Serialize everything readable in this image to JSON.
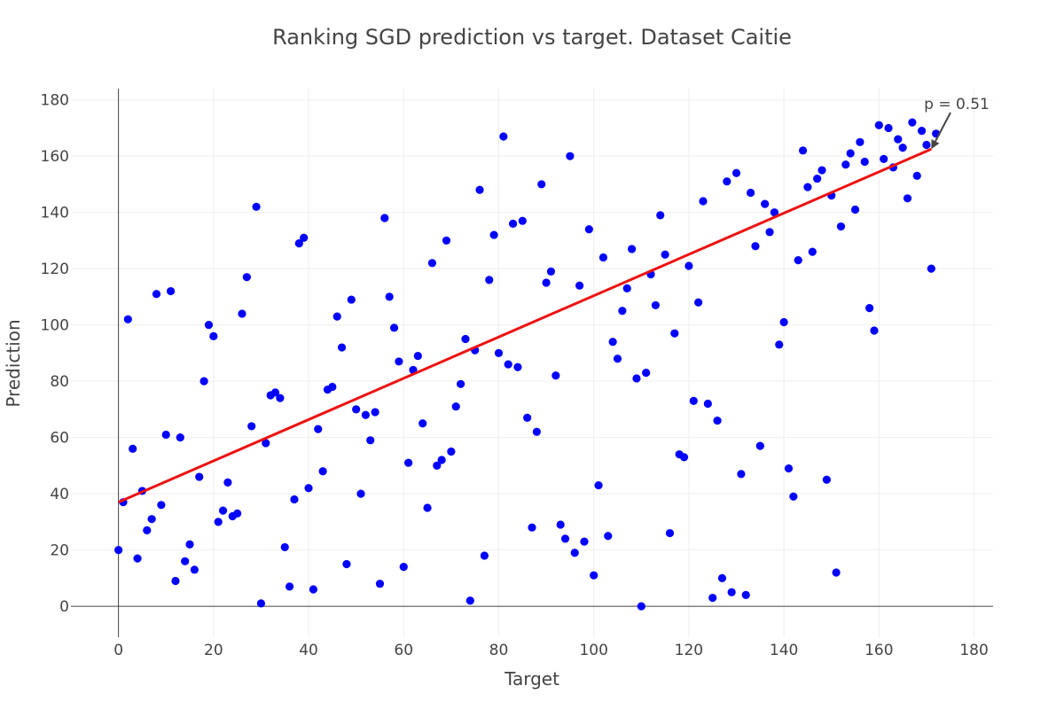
{
  "chart_data": {
    "type": "scatter",
    "title": "Ranking SGD prediction vs target. Dataset Caitie",
    "xlabel": "Target",
    "ylabel": "Prediction",
    "xlim": [
      -10,
      184
    ],
    "ylim": [
      -11,
      184
    ],
    "xticks": [
      0,
      20,
      40,
      60,
      80,
      100,
      120,
      140,
      160,
      180
    ],
    "yticks": [
      0,
      20,
      40,
      60,
      80,
      100,
      120,
      140,
      160,
      180
    ],
    "grid": true,
    "point_color": "#0000ff",
    "line_color": "#ee1111",
    "series": [
      {
        "type": "scatter",
        "x": [
          0,
          1,
          2,
          3,
          4,
          5,
          6,
          7,
          8,
          9,
          10,
          11,
          12,
          13,
          14,
          15,
          16,
          17,
          18,
          19,
          20,
          21,
          22,
          23,
          24,
          25,
          26,
          27,
          28,
          29,
          30,
          31,
          32,
          33,
          34,
          35,
          36,
          37,
          38,
          39,
          40,
          41,
          42,
          43,
          44,
          45,
          46,
          47,
          48,
          49,
          50,
          51,
          52,
          53,
          54,
          55,
          56,
          57,
          58,
          59,
          60,
          61,
          62,
          63,
          64,
          65,
          66,
          67,
          68,
          69,
          70,
          71,
          72,
          73,
          74,
          75,
          76,
          77,
          78,
          79,
          80,
          81,
          82,
          83,
          84,
          85,
          86,
          87,
          88,
          89,
          90,
          91,
          92,
          93,
          94,
          95,
          96,
          97,
          98,
          99,
          100,
          101,
          102,
          103,
          104,
          105,
          106,
          107,
          108,
          109,
          110,
          111,
          112,
          113,
          114,
          115,
          116,
          117,
          118,
          119,
          120,
          121,
          122,
          123,
          124,
          125,
          126,
          127,
          128,
          129,
          130,
          131,
          132,
          133,
          134,
          135,
          136,
          137,
          138,
          139,
          140,
          141,
          142,
          143,
          144,
          145,
          146,
          147,
          148,
          149,
          150,
          151,
          152,
          153,
          154,
          155,
          156,
          157,
          158,
          159,
          160,
          161,
          162,
          163,
          164,
          165,
          166,
          167,
          168,
          169,
          170,
          171,
          172
        ],
        "y": [
          20,
          37,
          102,
          56,
          17,
          41,
          27,
          31,
          111,
          36,
          61,
          112,
          9,
          60,
          16,
          22,
          13,
          46,
          80,
          100,
          96,
          30,
          34,
          44,
          32,
          33,
          104,
          117,
          64,
          142,
          1,
          58,
          75,
          76,
          74,
          21,
          7,
          38,
          129,
          131,
          42,
          6,
          63,
          48,
          77,
          78,
          103,
          92,
          15,
          109,
          70,
          40,
          68,
          59,
          69,
          8,
          138,
          110,
          99,
          87,
          14,
          51,
          84,
          89,
          65,
          35,
          122,
          50,
          52,
          130,
          55,
          71,
          79,
          95,
          2,
          91,
          148,
          18,
          116,
          132,
          90,
          167,
          86,
          136,
          85,
          137,
          67,
          28,
          62,
          150,
          115,
          119,
          82,
          29,
          24,
          160,
          19,
          114,
          23,
          134,
          11,
          43,
          124,
          25,
          94,
          88,
          105,
          113,
          127,
          81,
          0,
          83,
          118,
          107,
          139,
          125,
          26,
          97,
          54,
          53,
          121,
          73,
          108,
          144,
          72,
          3,
          66,
          10,
          151,
          5,
          154,
          47,
          4,
          147,
          128,
          57,
          143,
          133,
          140,
          93,
          101,
          49,
          39,
          123,
          162,
          149,
          126,
          152,
          155,
          45,
          146,
          12,
          135,
          157,
          161,
          141,
          165,
          158,
          106,
          98,
          171,
          159,
          170,
          156,
          166,
          163,
          145,
          172,
          153,
          169,
          164,
          120,
          168
        ]
      },
      {
        "type": "line",
        "name": "",
        "x": [
          0,
          171
        ],
        "y": [
          37,
          162.5
        ]
      }
    ],
    "annotations": [
      {
        "text": "p = 0.51",
        "x": 171,
        "y": 162.5
      }
    ]
  }
}
